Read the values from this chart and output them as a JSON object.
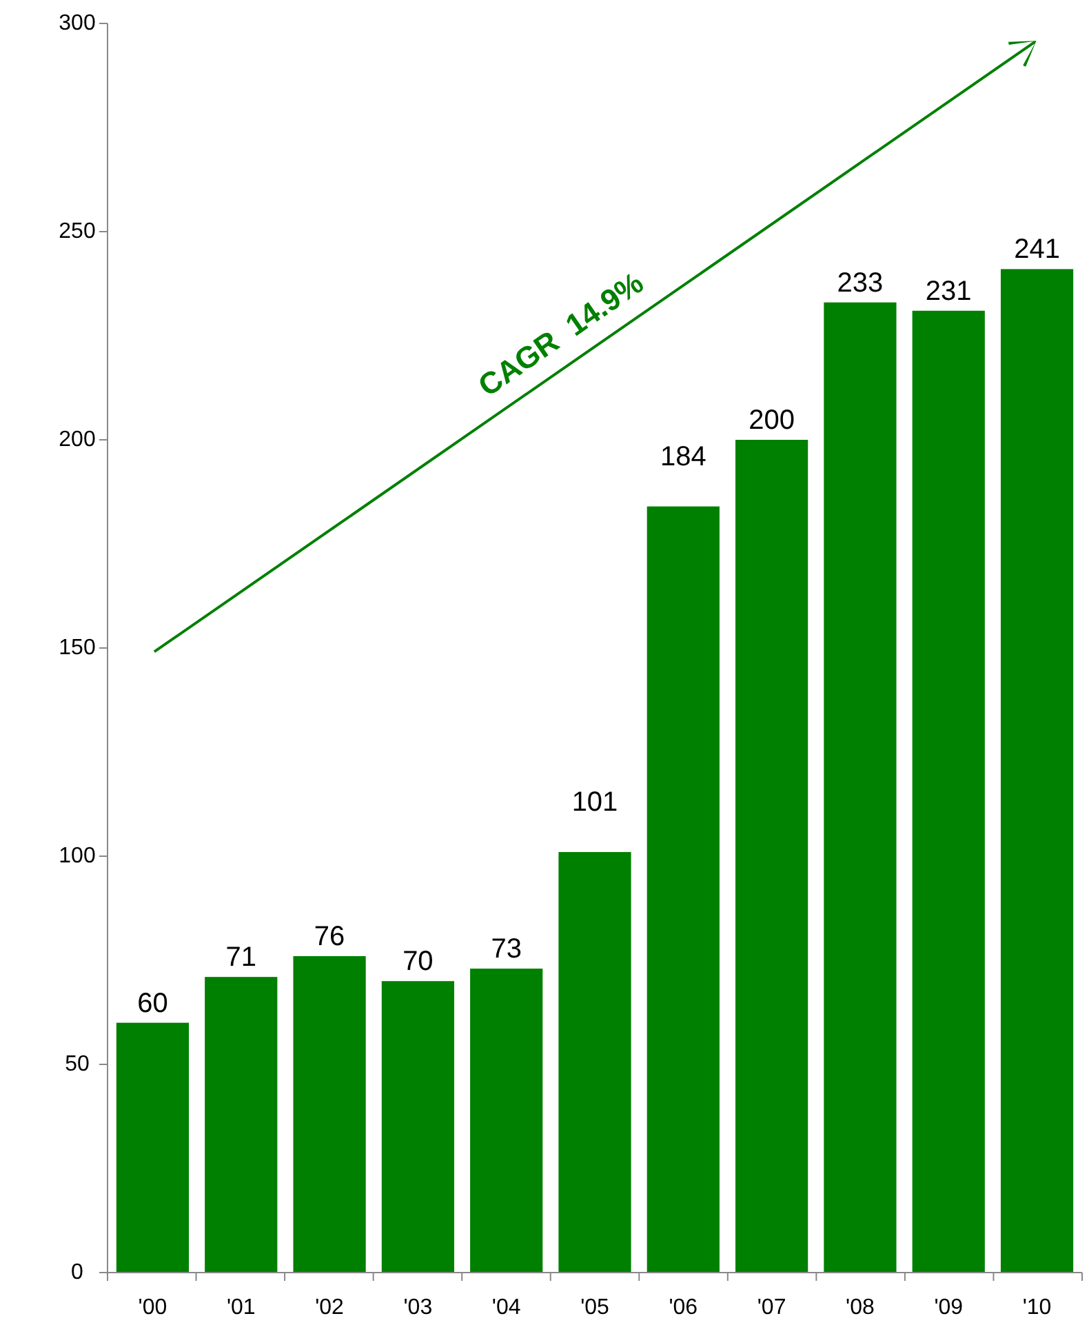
{
  "chart_data": {
    "type": "bar",
    "categories": [
      "'00",
      "'01",
      "'02",
      "'03",
      "'04",
      "'05",
      "'06",
      "'07",
      "'08",
      "'09",
      "'10"
    ],
    "values": [
      60,
      71,
      76,
      70,
      73,
      101,
      184,
      200,
      233,
      231,
      241
    ],
    "color": "#008000",
    "ylim": [
      0,
      300
    ],
    "yticks": [
      0,
      50,
      100,
      150,
      200,
      250,
      300
    ],
    "data_labels": true,
    "annotations": [
      "CAGR  14.9%"
    ]
  }
}
